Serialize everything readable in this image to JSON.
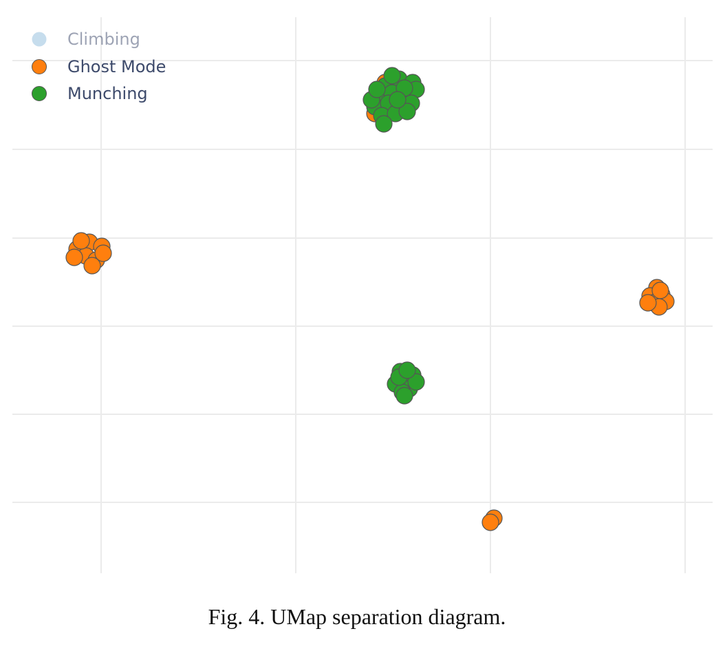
{
  "caption": "Fig. 4.  UMap separation diagram.",
  "chart_data": {
    "type": "scatter",
    "title": "",
    "xlabel": "",
    "ylabel": "",
    "grid": true,
    "legend_position": "top-left",
    "series": [
      {
        "name": "Climbing",
        "color": "#8fbcdc",
        "hidden": true,
        "points": []
      },
      {
        "name": "Ghost Mode",
        "color": "#ff7f0e",
        "points": [
          {
            "x": 570,
            "y": 141
          },
          {
            "x": 585,
            "y": 160
          },
          {
            "x": 545,
            "y": 165
          },
          {
            "x": 600,
            "y": 125
          },
          {
            "x": 560,
            "y": 120
          },
          {
            "x": 130,
            "y": 352
          },
          {
            "x": 112,
            "y": 362
          },
          {
            "x": 148,
            "y": 358
          },
          {
            "x": 125,
            "y": 372
          },
          {
            "x": 140,
            "y": 378
          },
          {
            "x": 118,
            "y": 350
          },
          {
            "x": 134,
            "y": 386
          },
          {
            "x": 150,
            "y": 368
          },
          {
            "x": 108,
            "y": 374
          },
          {
            "x": 955,
            "y": 418
          },
          {
            "x": 945,
            "y": 430
          },
          {
            "x": 962,
            "y": 428
          },
          {
            "x": 950,
            "y": 440
          },
          {
            "x": 968,
            "y": 438
          },
          {
            "x": 958,
            "y": 446
          },
          {
            "x": 942,
            "y": 440
          },
          {
            "x": 960,
            "y": 422
          },
          {
            "x": 718,
            "y": 753
          },
          {
            "x": 713,
            "y": 759
          }
        ]
      },
      {
        "name": "Munching",
        "color": "#2ca02c",
        "points": [
          {
            "x": 560,
            "y": 125
          },
          {
            "x": 580,
            "y": 115
          },
          {
            "x": 600,
            "y": 120
          },
          {
            "x": 550,
            "y": 140
          },
          {
            "x": 570,
            "y": 135
          },
          {
            "x": 590,
            "y": 140
          },
          {
            "x": 605,
            "y": 130
          },
          {
            "x": 545,
            "y": 155
          },
          {
            "x": 565,
            "y": 150
          },
          {
            "x": 585,
            "y": 155
          },
          {
            "x": 598,
            "y": 150
          },
          {
            "x": 555,
            "y": 168
          },
          {
            "x": 575,
            "y": 165
          },
          {
            "x": 592,
            "y": 162
          },
          {
            "x": 558,
            "y": 180
          },
          {
            "x": 540,
            "y": 145
          },
          {
            "x": 570,
            "y": 110
          },
          {
            "x": 588,
            "y": 128
          },
          {
            "x": 548,
            "y": 130
          },
          {
            "x": 578,
            "y": 145
          },
          {
            "x": 582,
            "y": 540
          },
          {
            "x": 600,
            "y": 545
          },
          {
            "x": 590,
            "y": 555
          },
          {
            "x": 575,
            "y": 558
          },
          {
            "x": 595,
            "y": 565
          },
          {
            "x": 585,
            "y": 570
          },
          {
            "x": 605,
            "y": 555
          },
          {
            "x": 580,
            "y": 548
          },
          {
            "x": 592,
            "y": 538
          },
          {
            "x": 588,
            "y": 575
          }
        ]
      }
    ]
  }
}
